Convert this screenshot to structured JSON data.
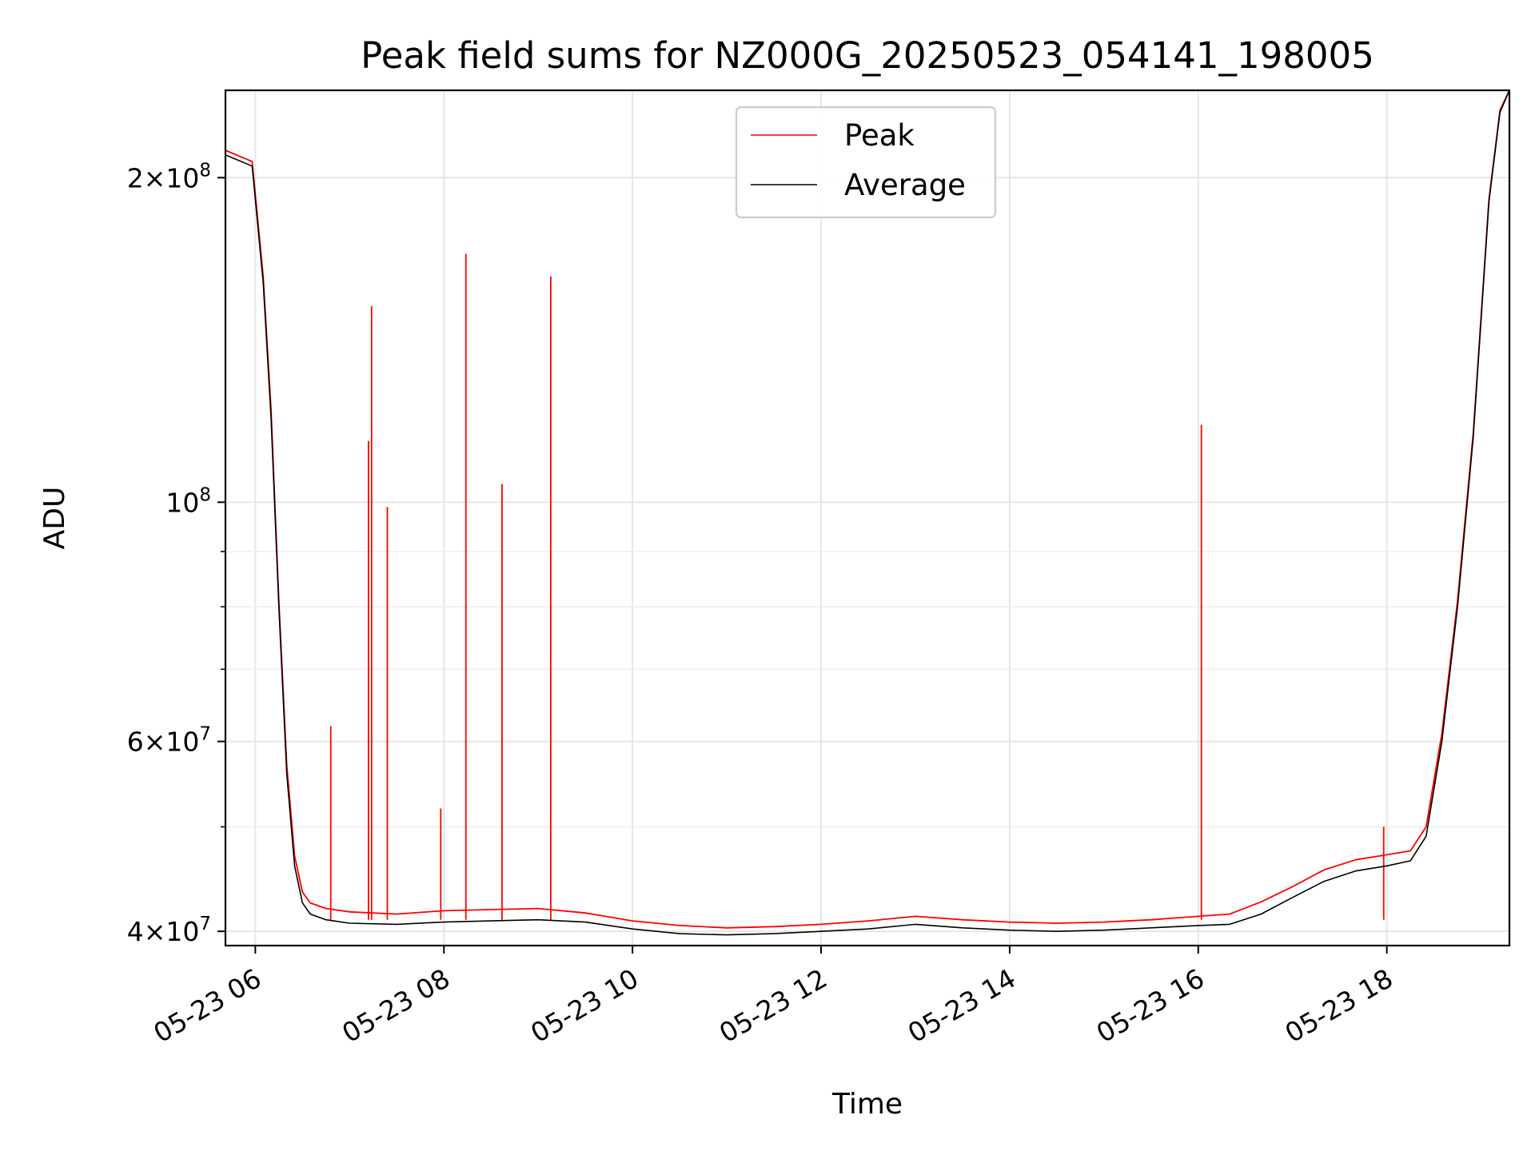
{
  "chart_data": {
    "type": "line",
    "title": "Peak field sums for NZ000G_20250523_054141_198005",
    "xlabel": "Time",
    "ylabel": "ADU",
    "yscale": "log",
    "grid": true,
    "legend_position": "top-center",
    "xlim": [
      "2025-05-23 05:41",
      "2025-05-23 19:18"
    ],
    "ylim": [
      38800000,
      241000000
    ],
    "x_ticks": [
      {
        "value": "2025-05-23 06:00",
        "label": "05-23 06"
      },
      {
        "value": "2025-05-23 08:00",
        "label": "05-23 08"
      },
      {
        "value": "2025-05-23 10:00",
        "label": "05-23 10"
      },
      {
        "value": "2025-05-23 12:00",
        "label": "05-23 12"
      },
      {
        "value": "2025-05-23 14:00",
        "label": "05-23 14"
      },
      {
        "value": "2025-05-23 16:00",
        "label": "05-23 16"
      },
      {
        "value": "2025-05-23 18:00",
        "label": "05-23 18"
      }
    ],
    "y_ticks": [
      {
        "value": 40000000,
        "base": "4",
        "exp": "7"
      },
      {
        "value": 60000000,
        "base": "6",
        "exp": "7"
      },
      {
        "value": 100000000,
        "base": "",
        "exp": "8"
      },
      {
        "value": 200000000,
        "base": "2",
        "exp": "8"
      }
    ],
    "y_minor_ticks": [
      50000000,
      70000000,
      80000000,
      90000000
    ],
    "x": [
      "2025-05-23 05:41",
      "2025-05-23 05:58",
      "2025-05-23 06:05",
      "2025-05-23 06:10",
      "2025-05-23 06:15",
      "2025-05-23 06:20",
      "2025-05-23 06:25",
      "2025-05-23 06:30",
      "2025-05-23 06:35",
      "2025-05-23 06:45",
      "2025-05-23 07:00",
      "2025-05-23 07:30",
      "2025-05-23 08:00",
      "2025-05-23 08:30",
      "2025-05-23 09:00",
      "2025-05-23 09:30",
      "2025-05-23 10:00",
      "2025-05-23 10:30",
      "2025-05-23 11:00",
      "2025-05-23 11:30",
      "2025-05-23 12:00",
      "2025-05-23 12:30",
      "2025-05-23 13:00",
      "2025-05-23 13:30",
      "2025-05-23 14:00",
      "2025-05-23 14:30",
      "2025-05-23 15:00",
      "2025-05-23 15:30",
      "2025-05-23 16:00",
      "2025-05-23 16:20",
      "2025-05-23 16:40",
      "2025-05-23 17:00",
      "2025-05-23 17:20",
      "2025-05-23 17:40",
      "2025-05-23 18:00",
      "2025-05-23 18:15",
      "2025-05-23 18:25",
      "2025-05-23 18:35",
      "2025-05-23 18:45",
      "2025-05-23 18:55",
      "2025-05-23 19:05",
      "2025-05-23 19:12",
      "2025-05-23 19:18"
    ],
    "series": [
      {
        "name": "Average",
        "color": "#000000",
        "values": [
          210000000,
          205000000,
          160000000,
          120000000,
          80000000,
          56000000,
          46000000,
          42500000,
          41500000,
          41000000,
          40700000,
          40600000,
          40800000,
          40900000,
          41000000,
          40800000,
          40200000,
          39800000,
          39700000,
          39800000,
          40000000,
          40200000,
          40600000,
          40300000,
          40100000,
          40000000,
          40100000,
          40300000,
          40500000,
          40600000,
          41500000,
          43000000,
          44500000,
          45500000,
          46000000,
          46500000,
          49000000,
          60000000,
          80000000,
          115000000,
          190000000,
          230000000,
          241000000
        ]
      },
      {
        "name": "Peak",
        "color": "#ff0000",
        "values": [
          212000000,
          207000000,
          162000000,
          122000000,
          81000000,
          57000000,
          47000000,
          43500000,
          42500000,
          42000000,
          41700000,
          41500000,
          41800000,
          41900000,
          42000000,
          41600000,
          40900000,
          40500000,
          40300000,
          40400000,
          40600000,
          40900000,
          41300000,
          41000000,
          40800000,
          40700000,
          40800000,
          41000000,
          41300000,
          41500000,
          42600000,
          44000000,
          45600000,
          46600000,
          47100000,
          47500000,
          50000000,
          61000000,
          81000000,
          116000000,
          191000000,
          231000000,
          241000000
        ],
        "spikes": [
          {
            "x": "2025-05-23 06:48",
            "value": 62000000
          },
          {
            "x": "2025-05-23 07:12",
            "value": 114000000
          },
          {
            "x": "2025-05-23 07:14",
            "value": 152000000
          },
          {
            "x": "2025-05-23 07:24",
            "value": 99000000
          },
          {
            "x": "2025-05-23 07:58",
            "value": 52000000
          },
          {
            "x": "2025-05-23 08:14",
            "value": 170000000
          },
          {
            "x": "2025-05-23 08:37",
            "value": 104000000
          },
          {
            "x": "2025-05-23 09:08",
            "value": 162000000
          },
          {
            "x": "2025-05-23 16:02",
            "value": 118000000
          },
          {
            "x": "2025-05-23 17:58",
            "value": 50000000
          }
        ]
      }
    ]
  }
}
